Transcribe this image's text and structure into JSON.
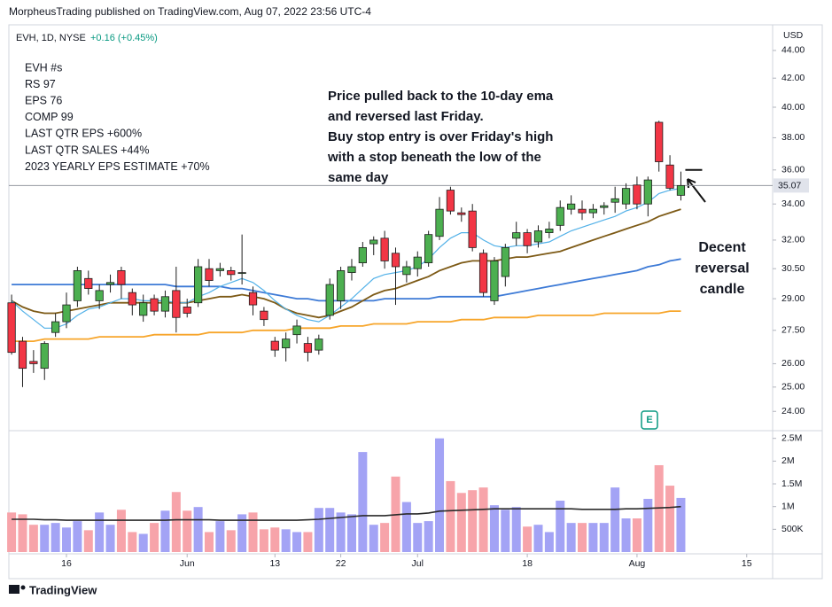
{
  "chart_data": {
    "type": "candlestick",
    "header": "MorpheusTrading published on TradingView.com, Aug 07, 2022 23:56 UTC-4",
    "symbol": "EVH, 1D, NYSE",
    "change": "+0.16 (+0.45%)",
    "notes": [
      "EVH #s",
      "RS 97",
      "EPS 76",
      "COMP 99",
      "LAST QTR EPS +600%",
      "LAST QTR SALES +44%",
      "2023 YEARLY EPS ESTIMATE +70%"
    ],
    "annotation": [
      "Price pulled back to the 10-day ema",
      "and reversed last Friday.",
      "Buy stop entry is over Friday's high",
      "with a stop beneath the low of the",
      "same day"
    ],
    "callout": [
      "Decent",
      "reversal",
      "candle"
    ],
    "currency": "USD",
    "earnings_label": "E",
    "footer": "TradingView",
    "log": true,
    "xlim": [
      -0.25,
      69.2
    ],
    "xticks": [
      {
        "value": 5,
        "label": "16"
      },
      {
        "value": 16,
        "label": "Jun"
      },
      {
        "value": 24,
        "label": "13"
      },
      {
        "value": 30,
        "label": "22"
      },
      {
        "value": 37,
        "label": "Jul"
      },
      {
        "value": 47,
        "label": "18"
      },
      {
        "value": 57,
        "label": "Aug"
      },
      {
        "value": 67,
        "label": "15"
      }
    ],
    "ylim": [
      23.27,
      45.8
    ],
    "yticks": [
      {
        "value": 44,
        "label": "44.00"
      },
      {
        "value": 42,
        "label": "42.00"
      },
      {
        "value": 40,
        "label": "40.00"
      },
      {
        "value": 38,
        "label": "38.00"
      },
      {
        "value": 36,
        "label": "36.00"
      },
      {
        "value": 34,
        "label": "34.00"
      },
      {
        "value": 32,
        "label": "32.00"
      },
      {
        "value": 30.5,
        "label": "30.50"
      },
      {
        "value": 29,
        "label": "29.00"
      },
      {
        "value": 27.5,
        "label": "27.50"
      },
      {
        "value": 26,
        "label": "26.00"
      },
      {
        "value": 25,
        "label": "25.00"
      },
      {
        "value": 24,
        "label": "24.00"
      }
    ],
    "up_color": "#4caf50",
    "down_color": "#f23645",
    "outline_color": "#1e1e1e",
    "open": [
      28.8,
      27.0,
      26.1,
      25.8,
      27.4,
      27.9,
      28.9,
      30.0,
      28.9,
      29.7,
      30.4,
      29.3,
      28.2,
      29.0,
      28.4,
      29.4,
      28.6,
      28.8,
      30.5,
      30.4,
      30.4,
      30.3,
      29.3,
      28.4,
      27.0,
      26.7,
      27.3,
      26.9,
      26.6,
      28.2,
      28.9,
      30.3,
      30.8,
      31.8,
      32.1,
      31.3,
      30.2,
      30.5,
      30.8,
      32.2,
      34.8,
      33.5,
      33.6,
      31.3,
      28.9,
      30.1,
      32.1,
      32.4,
      31.9,
      32.4,
      32.8,
      33.7,
      33.7,
      33.5,
      33.8,
      34.1,
      34.0,
      35.1,
      34.0,
      39.0,
      36.3,
      34.5
    ],
    "high": [
      29.2,
      27.2,
      26.6,
      27.0,
      28.3,
      29.3,
      30.6,
      30.4,
      29.7,
      30.2,
      30.6,
      29.5,
      29.2,
      29.2,
      29.4,
      30.6,
      29.0,
      31.0,
      31.0,
      30.8,
      30.6,
      32.3,
      29.6,
      28.6,
      27.2,
      27.4,
      28.0,
      27.2,
      27.3,
      30.0,
      30.6,
      31.0,
      31.9,
      32.2,
      32.5,
      31.6,
      30.9,
      31.4,
      32.5,
      34.4,
      35.0,
      33.8,
      34.0,
      31.5,
      31.1,
      31.8,
      33.0,
      32.6,
      32.8,
      33.0,
      34.2,
      34.5,
      34.2,
      34.0,
      34.1,
      35.0,
      35.2,
      35.6,
      35.6,
      39.1,
      36.9,
      35.9
    ],
    "low": [
      26.4,
      25.0,
      25.6,
      25.3,
      27.2,
      27.6,
      28.6,
      29.2,
      28.5,
      29.3,
      29.0,
      28.2,
      27.9,
      28.2,
      28.1,
      27.4,
      28.1,
      28.6,
      29.6,
      30.1,
      29.9,
      29.7,
      28.2,
      27.7,
      26.3,
      26.1,
      26.9,
      26.1,
      26.4,
      28.0,
      28.5,
      29.9,
      30.6,
      31.2,
      30.5,
      28.7,
      29.8,
      30.1,
      30.6,
      32.0,
      33.4,
      33.0,
      31.4,
      29.1,
      28.7,
      29.6,
      31.7,
      31.3,
      31.6,
      32.1,
      32.5,
      33.4,
      33.1,
      33.2,
      33.4,
      33.5,
      33.7,
      33.7,
      33.3,
      35.9,
      34.8,
      34.2
    ],
    "close": [
      26.5,
      25.8,
      26.0,
      26.9,
      27.9,
      28.7,
      30.4,
      29.5,
      29.4,
      29.8,
      29.7,
      28.7,
      28.8,
      28.4,
      29.1,
      28.1,
      28.3,
      30.6,
      29.9,
      30.5,
      30.2,
      30.3,
      28.7,
      28.0,
      26.6,
      27.1,
      27.7,
      26.5,
      27.1,
      29.7,
      30.4,
      30.6,
      31.6,
      32.0,
      30.9,
      30.6,
      30.6,
      31.1,
      32.3,
      33.7,
      33.6,
      33.4,
      31.6,
      29.3,
      30.9,
      31.6,
      32.4,
      31.7,
      32.5,
      32.6,
      33.8,
      34.0,
      33.5,
      33.7,
      33.9,
      34.3,
      34.9,
      34.0,
      35.4,
      36.5,
      34.91,
      35.07
    ],
    "last_price": 35.07,
    "buy_stop": 36.0,
    "moving_averages": [
      {
        "color": "#f7a52a",
        "values": [
          27.0,
          27.0,
          27.0,
          27.1,
          27.1,
          27.1,
          27.1,
          27.1,
          27.2,
          27.2,
          27.2,
          27.2,
          27.2,
          27.3,
          27.3,
          27.3,
          27.3,
          27.3,
          27.4,
          27.4,
          27.4,
          27.4,
          27.5,
          27.5,
          27.5,
          27.5,
          27.6,
          27.6,
          27.6,
          27.6,
          27.7,
          27.7,
          27.7,
          27.8,
          27.8,
          27.8,
          27.8,
          27.9,
          27.9,
          27.9,
          27.9,
          28.0,
          28.0,
          28.0,
          28.1,
          28.1,
          28.1,
          28.1,
          28.2,
          28.2,
          28.2,
          28.2,
          28.2,
          28.2,
          28.3,
          28.3,
          28.3,
          28.3,
          28.3,
          28.3,
          28.4,
          28.4
        ]
      },
      {
        "color": "#3d7ad6",
        "values": [
          29.7,
          29.7,
          29.7,
          29.7,
          29.7,
          29.7,
          29.7,
          29.7,
          29.7,
          29.7,
          29.7,
          29.7,
          29.7,
          29.7,
          29.7,
          29.6,
          29.6,
          29.6,
          29.6,
          29.6,
          29.5,
          29.5,
          29.4,
          29.3,
          29.2,
          29.1,
          29.0,
          29.0,
          28.9,
          28.9,
          28.9,
          28.9,
          28.9,
          28.9,
          29.0,
          29.0,
          29.0,
          29.0,
          29.0,
          29.1,
          29.1,
          29.1,
          29.1,
          29.1,
          29.1,
          29.2,
          29.3,
          29.4,
          29.5,
          29.6,
          29.7,
          29.8,
          29.9,
          30.0,
          30.1,
          30.2,
          30.3,
          30.4,
          30.6,
          30.7,
          30.9,
          31.0
        ]
      },
      {
        "color": "#7d5a16",
        "values": [
          28.9,
          28.6,
          28.4,
          28.3,
          28.3,
          28.4,
          28.5,
          28.6,
          28.7,
          28.8,
          28.8,
          28.8,
          28.8,
          28.8,
          28.8,
          28.8,
          28.8,
          28.9,
          29.0,
          29.1,
          29.1,
          29.2,
          29.1,
          29.0,
          28.8,
          28.5,
          28.3,
          28.2,
          28.1,
          28.2,
          28.4,
          28.6,
          28.9,
          29.2,
          29.4,
          29.5,
          29.7,
          29.9,
          30.1,
          30.4,
          30.6,
          30.8,
          30.9,
          30.9,
          30.9,
          31.0,
          31.1,
          31.1,
          31.2,
          31.3,
          31.4,
          31.6,
          31.8,
          32.0,
          32.2,
          32.4,
          32.6,
          32.8,
          33.0,
          33.3,
          33.5,
          33.7
        ]
      },
      {
        "color": "#52b1e8",
        "values": [
          28.9,
          28.4,
          28.0,
          27.6,
          27.6,
          27.8,
          28.2,
          28.5,
          28.6,
          28.8,
          29.0,
          29.0,
          28.9,
          28.9,
          28.9,
          28.8,
          28.8,
          29.1,
          29.3,
          29.6,
          29.8,
          30.0,
          29.8,
          29.4,
          28.9,
          28.5,
          28.2,
          28.0,
          27.9,
          28.2,
          28.6,
          29.0,
          29.5,
          30.0,
          30.2,
          30.3,
          30.4,
          30.6,
          31.0,
          31.6,
          32.1,
          32.4,
          32.4,
          32.0,
          31.7,
          31.6,
          31.7,
          31.7,
          31.8,
          31.9,
          32.2,
          32.5,
          32.7,
          32.9,
          33.1,
          33.3,
          33.6,
          33.8,
          34.1,
          34.6,
          34.8,
          34.9
        ]
      }
    ],
    "volume": {
      "up_color": "#a3a3f5",
      "down_color": "#f7a4aa",
      "ylim": [
        0,
        2650000
      ],
      "yticks": [
        {
          "value": 2500000,
          "label": "2.5M"
        },
        {
          "value": 2000000,
          "label": "2M"
        },
        {
          "value": 1500000,
          "label": "1.5M"
        },
        {
          "value": 1000000,
          "label": "1M"
        },
        {
          "value": 500000,
          "label": "500K"
        }
      ],
      "values": [
        870000,
        830000,
        600000,
        600000,
        640000,
        540000,
        680000,
        480000,
        870000,
        600000,
        930000,
        440000,
        400000,
        640000,
        910000,
        1320000,
        910000,
        990000,
        440000,
        680000,
        480000,
        830000,
        870000,
        500000,
        540000,
        500000,
        440000,
        440000,
        970000,
        970000,
        870000,
        830000,
        2200000,
        600000,
        640000,
        1660000,
        1100000,
        640000,
        680000,
        2500000,
        1560000,
        1300000,
        1360000,
        1420000,
        1030000,
        930000,
        990000,
        560000,
        600000,
        440000,
        1130000,
        640000,
        640000,
        640000,
        640000,
        1420000,
        740000,
        740000,
        1170000,
        1910000,
        1460000,
        1190000
      ],
      "ma": {
        "color": "#2a2a2a",
        "values": [
          720000,
          720000,
          720000,
          710000,
          710000,
          700000,
          700000,
          700000,
          700000,
          700000,
          700000,
          700000,
          700000,
          700000,
          700000,
          710000,
          710000,
          710000,
          710000,
          700000,
          700000,
          700000,
          700000,
          700000,
          700000,
          700000,
          700000,
          710000,
          720000,
          740000,
          760000,
          780000,
          800000,
          800000,
          800000,
          820000,
          840000,
          840000,
          860000,
          900000,
          910000,
          920000,
          930000,
          940000,
          950000,
          950000,
          950000,
          950000,
          950000,
          950000,
          950000,
          950000,
          940000,
          940000,
          940000,
          940000,
          950000,
          950000,
          960000,
          970000,
          980000,
          1000000
        ]
      }
    }
  }
}
